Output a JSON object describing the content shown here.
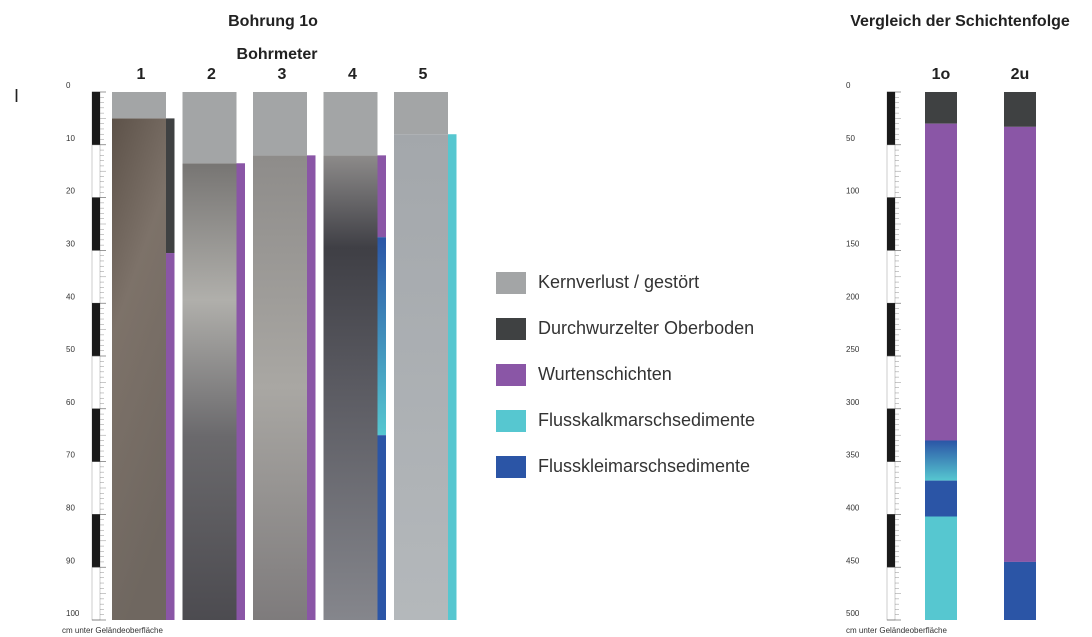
{
  "panel_letter": "I",
  "left_panel": {
    "title": "Bohrung 1o",
    "subtitle": "Bohrmeter",
    "axis_label": "cm unter Geländeoberfläche",
    "range": [
      0,
      100
    ],
    "ticks": [
      0,
      10,
      20,
      30,
      40,
      50,
      60,
      70,
      80,
      90,
      100
    ],
    "cores": [
      {
        "label": "1",
        "layers": [
          {
            "unit": 0,
            "from": 0,
            "to": 5
          },
          {
            "unit": 1,
            "from": 5,
            "to": 30.5
          },
          {
            "unit": 2,
            "from": 30.5,
            "to": 100
          }
        ]
      },
      {
        "label": "2",
        "layers": [
          {
            "unit": 0,
            "from": 0,
            "to": 13.5
          },
          {
            "unit": 2,
            "from": 13.5,
            "to": 100
          }
        ]
      },
      {
        "label": "3",
        "layers": [
          {
            "unit": 0,
            "from": 0,
            "to": 12
          },
          {
            "unit": 2,
            "from": 12,
            "to": 100
          }
        ]
      },
      {
        "label": "4",
        "layers": [
          {
            "unit": 0,
            "from": 0,
            "to": 12
          },
          {
            "unit": 2,
            "from": 12,
            "to": 27.5
          },
          {
            "units": [
              4,
              3
            ],
            "from": 27.5,
            "to": 65
          },
          {
            "unit": 4,
            "from": 65,
            "to": 100
          }
        ]
      },
      {
        "label": "5",
        "layers": [
          {
            "unit": 0,
            "from": 0,
            "to": 8
          },
          {
            "unit": 3,
            "from": 8,
            "to": 100
          }
        ]
      }
    ]
  },
  "legend": [
    {
      "label": "Kernverlust / gestört",
      "color": "#a3a5a6"
    },
    {
      "label": "Durchwurzelter Oberboden",
      "color": "#3f4142"
    },
    {
      "label": "Wurtenschichten",
      "color": "#8a56a6"
    },
    {
      "label": "Flusskalkmarschsedimente",
      "color": "#56c7d0"
    },
    {
      "label": "Flusskleimarschsedimente",
      "color": "#2b55a6"
    }
  ],
  "right_panel": {
    "title": "Vergleich der Schichtenfolge",
    "axis_label": "cm unter Geländeoberfläche",
    "range": [
      0,
      500
    ],
    "ticks": [
      0,
      50,
      100,
      150,
      200,
      250,
      300,
      350,
      400,
      450,
      500
    ],
    "columns": [
      {
        "label": "1o",
        "layers": [
          {
            "unit": 1,
            "from": 0,
            "to": 30
          },
          {
            "unit": 2,
            "from": 30,
            "to": 330
          },
          {
            "units": [
              4,
              3
            ],
            "from": 330,
            "to": 368
          },
          {
            "unit": 4,
            "from": 368,
            "to": 402
          },
          {
            "unit": 3,
            "from": 402,
            "to": 500
          }
        ]
      },
      {
        "label": "2u",
        "layers": [
          {
            "unit": 1,
            "from": 0,
            "to": 33
          },
          {
            "unit": 2,
            "from": 33,
            "to": 445
          },
          {
            "unit": 4,
            "from": 445,
            "to": 500
          }
        ]
      }
    ]
  }
}
